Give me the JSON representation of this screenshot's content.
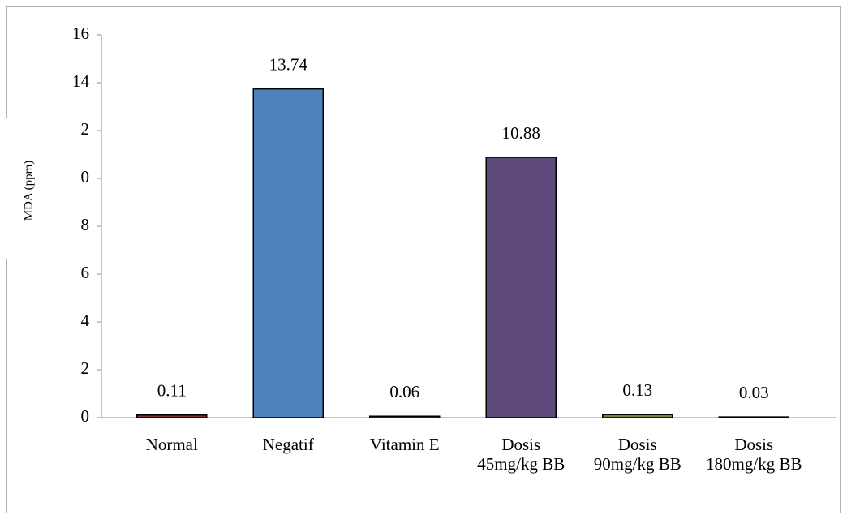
{
  "chart_data": {
    "type": "bar",
    "y_label": "MDA (ppm)",
    "categories": [
      "Normal",
      "Negatif",
      "Vitamin E",
      "Dosis\n45mg/kg BB",
      "Dosis\n90mg/kg BB",
      "Dosis\n180mg/kg BB"
    ],
    "values": [
      0.11,
      13.74,
      0.06,
      10.88,
      0.13,
      0.03
    ],
    "colors": [
      "#8b2e2e",
      "#4f81bd",
      "#77933c",
      "#604a7b",
      "#7f7f3f",
      "#8c8c8c"
    ],
    "ylim": [
      0,
      16
    ],
    "yticks": [
      0,
      2,
      4,
      6,
      8,
      {
        "value": 10,
        "label": "0"
      },
      {
        "value": 12,
        "label": "2"
      },
      14,
      16
    ]
  }
}
